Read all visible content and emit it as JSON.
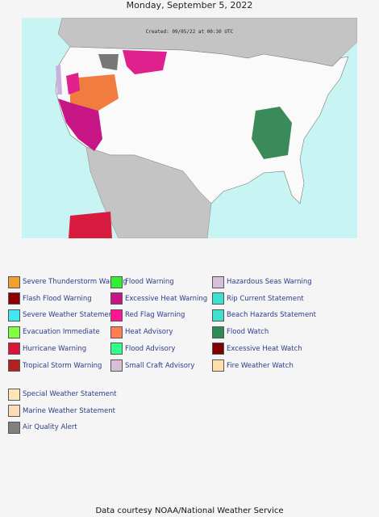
{
  "header": {
    "title": "Monday, September 5, 2022"
  },
  "map": {
    "created": "Created: 09/05/22 at 00:30 UTC"
  },
  "legend": {
    "columns": [
      [
        {
          "label": "Severe Thunderstorm Warning",
          "color": "#f0a030"
        },
        {
          "label": "Flash Flood Warning",
          "color": "#8b0000"
        },
        {
          "label": "Severe Weather Statement",
          "color": "#40e8f0"
        },
        {
          "label": "Evacuation Immediate",
          "color": "#7fff40"
        },
        {
          "label": "Hurricane Warning",
          "color": "#dc143c"
        },
        {
          "label": "Tropical Storm Warning",
          "color": "#b22222"
        }
      ],
      [
        {
          "label": "Flood Warning",
          "color": "#33ee33"
        },
        {
          "label": "Excessive Heat Warning",
          "color": "#c71585"
        },
        {
          "label": "Red Flag Warning",
          "color": "#ff1493"
        },
        {
          "label": "Heat Advisory",
          "color": "#ff7f50"
        },
        {
          "label": "Flood Advisory",
          "color": "#33ff88"
        },
        {
          "label": "Small Craft Advisory",
          "color": "#d8bfd8"
        }
      ],
      [
        {
          "label": "Hazardous Seas Warning",
          "color": "#d8bfd8"
        },
        {
          "label": "Rip Current Statement",
          "color": "#40e0d0"
        },
        {
          "label": "Beach Hazards Statement",
          "color": "#40e0d0"
        },
        {
          "label": "Flood Watch",
          "color": "#2e8b57"
        },
        {
          "label": "Excessive Heat Watch",
          "color": "#800000"
        },
        {
          "label": "Fire Weather Watch",
          "color": "#ffdead"
        }
      ]
    ],
    "extra": [
      {
        "label": "Special Weather Statement",
        "color": "#ffe4b5"
      },
      {
        "label": "Marine Weather Statement",
        "color": "#ffdab9"
      },
      {
        "label": "Air Quality Alert",
        "color": "#808080"
      }
    ]
  },
  "footer": {
    "text": "Data courtesy NOAA/National Weather Service"
  }
}
